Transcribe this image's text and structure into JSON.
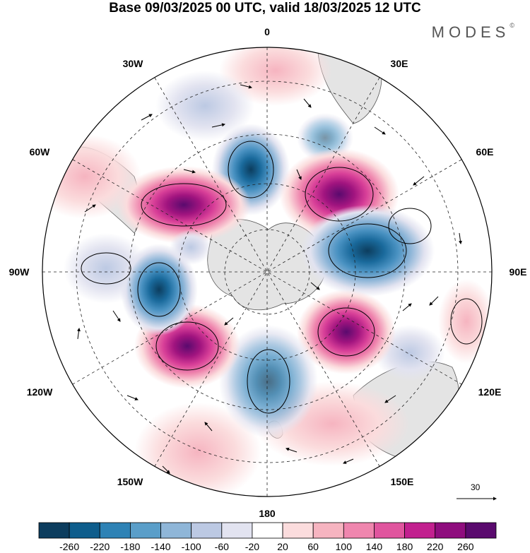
{
  "title": "Base 09/03/2025 00 UTC, valid 18/03/2025 12 UTC",
  "logo": {
    "text": "MODES",
    "mark": "©"
  },
  "map": {
    "projection": "south-polar-stereographic",
    "longitude_labels": [
      {
        "text": "0",
        "lon": 0
      },
      {
        "text": "30E",
        "lon": 30
      },
      {
        "text": "60E",
        "lon": 60
      },
      {
        "text": "90E",
        "lon": 90
      },
      {
        "text": "120E",
        "lon": 120
      },
      {
        "text": "150E",
        "lon": 150
      },
      {
        "text": "180",
        "lon": 180
      },
      {
        "text": "150W",
        "lon": -150
      },
      {
        "text": "120W",
        "lon": -120
      },
      {
        "text": "90W",
        "lon": -90
      },
      {
        "text": "60W",
        "lon": -60
      },
      {
        "text": "30W",
        "lon": -30
      }
    ],
    "anomaly_centers": [
      {
        "sign": "negative",
        "lon": 0,
        "value": -240
      },
      {
        "sign": "positive",
        "lon": 25,
        "value": 260
      },
      {
        "sign": "negative",
        "lon": 78,
        "value": -240
      },
      {
        "sign": "positive",
        "lon": 130,
        "value": 230
      },
      {
        "sign": "negative",
        "lon": 175,
        "value": -160
      },
      {
        "sign": "positive",
        "lon": -135,
        "value": 260
      },
      {
        "sign": "negative",
        "lon": -105,
        "value": -240
      },
      {
        "sign": "positive",
        "lon": -55,
        "value": 250
      }
    ]
  },
  "vector_reference": {
    "label": "30"
  },
  "colorbar": {
    "colors": [
      "#0c3d5e",
      "#0e5d8c",
      "#2e82b5",
      "#5a9ec9",
      "#8fb6d8",
      "#bcc9e3",
      "#e2e3f0",
      "#ffffff",
      "#fbdcdd",
      "#f6b4c0",
      "#ef86ae",
      "#e0559e",
      "#c2208f",
      "#8f0d7e",
      "#5a0a6e"
    ],
    "tick_labels": [
      "-260",
      "-220",
      "-180",
      "-140",
      "-100",
      "-60",
      "-20",
      "20",
      "60",
      "100",
      "140",
      "180",
      "220",
      "260"
    ]
  }
}
